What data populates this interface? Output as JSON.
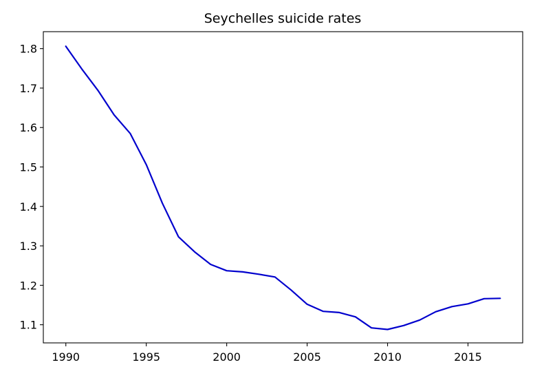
{
  "chart_data": {
    "type": "line",
    "title": "Seychelles suicide rates",
    "xlabel": "",
    "ylabel": "",
    "xlim": [
      1988.6,
      2018.4
    ],
    "ylim": [
      1.054,
      1.843
    ],
    "x_ticks": [
      1990,
      1995,
      2000,
      2005,
      2010,
      2015
    ],
    "x_tick_labels": [
      "1990",
      "1995",
      "2000",
      "2005",
      "2010",
      "2015"
    ],
    "y_ticks": [
      1.1,
      1.2,
      1.3,
      1.4,
      1.5,
      1.6,
      1.7,
      1.8
    ],
    "y_tick_labels": [
      "1.1",
      "1.2",
      "1.3",
      "1.4",
      "1.5",
      "1.6",
      "1.7",
      "1.8"
    ],
    "grid": false,
    "legend": "none",
    "series": [
      {
        "color": "#0000cd",
        "x": [
          1990,
          1991,
          1992,
          1993,
          1994,
          1995,
          1996,
          1997,
          1998,
          1999,
          2000,
          2001,
          2002,
          2003,
          2004,
          2005,
          2006,
          2007,
          2008,
          2009,
          2010,
          2011,
          2012,
          2013,
          2014,
          2015,
          2016,
          2017
        ],
        "y": [
          1.806,
          1.748,
          1.694,
          1.632,
          1.585,
          1.506,
          1.408,
          1.323,
          1.285,
          1.253,
          1.237,
          1.234,
          1.228,
          1.221,
          1.188,
          1.152,
          1.134,
          1.131,
          1.12,
          1.092,
          1.088,
          1.098,
          1.112,
          1.133,
          1.146,
          1.153,
          1.166,
          1.167
        ]
      }
    ]
  }
}
